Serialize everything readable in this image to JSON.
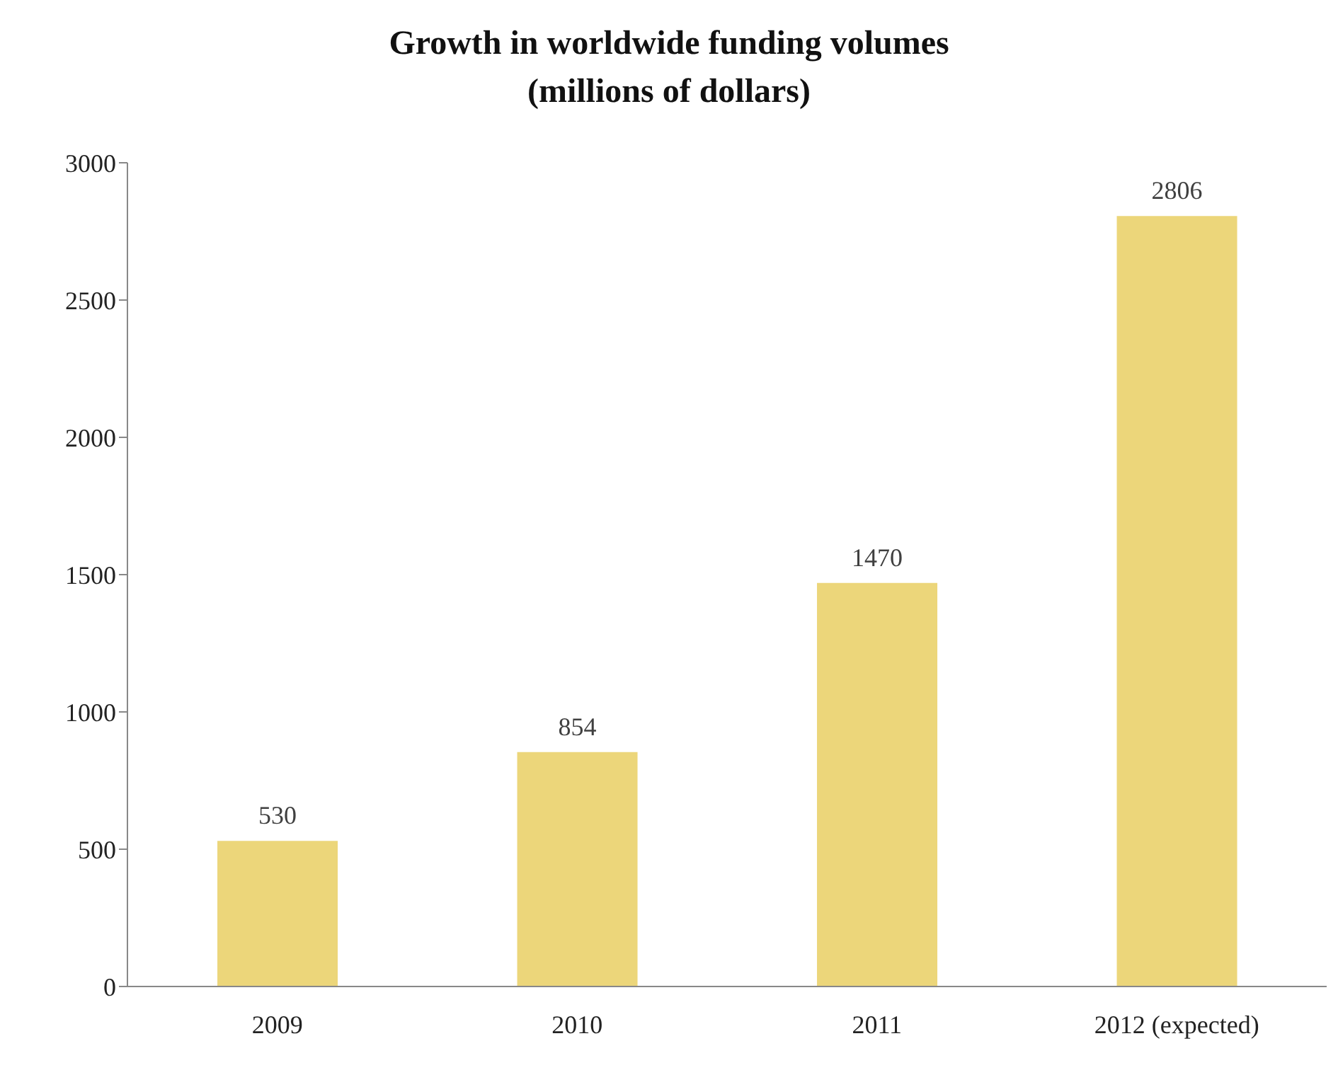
{
  "chart_data": {
    "type": "bar",
    "title": "Growth in worldwide funding volumes\n(millions of dollars)",
    "categories": [
      "2009",
      "2010",
      "2011",
      "2012 (expected)"
    ],
    "values": [
      530,
      854,
      1470,
      2806
    ],
    "color": "#ecd67a",
    "ylim": [
      0,
      3000
    ],
    "yticks": [
      0,
      500,
      1000,
      1500,
      2000,
      2500,
      3000
    ],
    "grid": false,
    "data_labels": true
  }
}
